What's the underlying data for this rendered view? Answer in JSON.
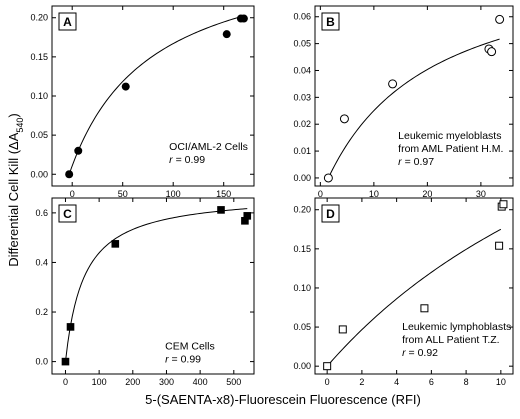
{
  "figure": {
    "ylabel_prefix": "Differential Cell Kill (",
    "ylabel_delta": "Δ",
    "ylabel_a": "A",
    "ylabel_sub": "540",
    "ylabel_suffix": ")",
    "xlabel": "5-(SAENTA-x8)-Fluorescein Fluorescence (RFI)"
  },
  "chart_data": [
    {
      "panel": "A",
      "type": "scatter",
      "marker": "filled-circle",
      "annotation_lines": [
        "OCI/AML-2 Cells"
      ],
      "r_label": "r",
      "r_value": "= 0.99",
      "xlim": [
        -20,
        180
      ],
      "ylim": [
        -0.015,
        0.215
      ],
      "xticks": [
        0,
        50,
        100,
        150
      ],
      "yticks": [
        0.0,
        0.05,
        0.1,
        0.15,
        0.2
      ],
      "ytick_labels": [
        "0.00",
        "0.05",
        "0.10",
        "0.15",
        "0.20"
      ],
      "points": [
        {
          "x": -3,
          "y": 0.0
        },
        {
          "x": 6,
          "y": 0.03
        },
        {
          "x": 53,
          "y": 0.112
        },
        {
          "x": 153,
          "y": 0.179
        },
        {
          "x": 167,
          "y": 0.199
        },
        {
          "x": 170,
          "y": 0.199
        }
      ],
      "fit": {
        "model": "hyperbola",
        "x0": -3,
        "vmax": 0.295,
        "k": 79,
        "from": -3,
        "to": 170
      }
    },
    {
      "panel": "B",
      "type": "scatter",
      "marker": "open-circle",
      "annotation_lines": [
        "Leukemic myeloblasts",
        "from AML Patient H.M."
      ],
      "r_label": "r",
      "r_value": "= 0.97",
      "xlim": [
        -1,
        36
      ],
      "ylim": [
        -0.003,
        0.064
      ],
      "xticks": [
        0,
        10,
        20,
        30
      ],
      "yticks": [
        0.0,
        0.01,
        0.02,
        0.03,
        0.04,
        0.05,
        0.06
      ],
      "ytick_labels": [
        "0.00",
        "0.01",
        "0.02",
        "0.03",
        "0.04",
        "0.05",
        "0.06"
      ],
      "points": [
        {
          "x": 1.5,
          "y": 0.0
        },
        {
          "x": 4.5,
          "y": 0.022
        },
        {
          "x": 13.5,
          "y": 0.035
        },
        {
          "x": 31.5,
          "y": 0.048
        },
        {
          "x": 32,
          "y": 0.047
        },
        {
          "x": 33.5,
          "y": 0.059
        }
      ],
      "fit": {
        "model": "hyperbola",
        "x0": 1.5,
        "vmax": 0.084,
        "k": 20,
        "from": 1.5,
        "to": 33.5
      }
    },
    {
      "panel": "C",
      "type": "scatter",
      "marker": "filled-square",
      "annotation_lines": [
        "CEM Cells"
      ],
      "r_label": "r",
      "r_value": "= 0.99",
      "xlim": [
        -40,
        560
      ],
      "ylim": [
        -0.05,
        0.66
      ],
      "xticks": [
        0,
        100,
        200,
        300,
        400,
        500
      ],
      "yticks": [
        0.0,
        0.2,
        0.4,
        0.6
      ],
      "ytick_labels": [
        "0.0",
        "0.2",
        "0.4",
        "0.6"
      ],
      "points": [
        {
          "x": 0,
          "y": 0.0
        },
        {
          "x": 15,
          "y": 0.14
        },
        {
          "x": 148,
          "y": 0.475
        },
        {
          "x": 462,
          "y": 0.612
        },
        {
          "x": 533,
          "y": 0.568
        },
        {
          "x": 540,
          "y": 0.588
        }
      ],
      "fit": {
        "model": "hyperbola",
        "x0": 0,
        "vmax": 0.68,
        "k": 55,
        "from": 0,
        "to": 540
      }
    },
    {
      "panel": "D",
      "type": "scatter",
      "marker": "open-square",
      "annotation_lines": [
        "Leukemic lymphoblasts",
        "from ALL Patient T.Z."
      ],
      "r_label": "r",
      "r_value": "= 0.92",
      "xlim": [
        -0.7,
        10.7
      ],
      "ylim": [
        -0.01,
        0.215
      ],
      "xticks": [
        0,
        2,
        4,
        6,
        8,
        10
      ],
      "yticks": [
        0.0,
        0.05,
        0.1,
        0.15,
        0.2
      ],
      "ytick_labels": [
        "0.00",
        "0.05",
        "0.10",
        "0.15",
        "0.20"
      ],
      "points": [
        {
          "x": 0,
          "y": 0.0
        },
        {
          "x": 0.9,
          "y": 0.047
        },
        {
          "x": 5.6,
          "y": 0.074
        },
        {
          "x": 9.9,
          "y": 0.154
        },
        {
          "x": 10.05,
          "y": 0.204
        },
        {
          "x": 10.15,
          "y": 0.207
        }
      ],
      "fit": {
        "model": "hyperbola",
        "x0": 0,
        "vmax": 0.56,
        "k": 22,
        "from": 0,
        "to": 10
      }
    }
  ]
}
